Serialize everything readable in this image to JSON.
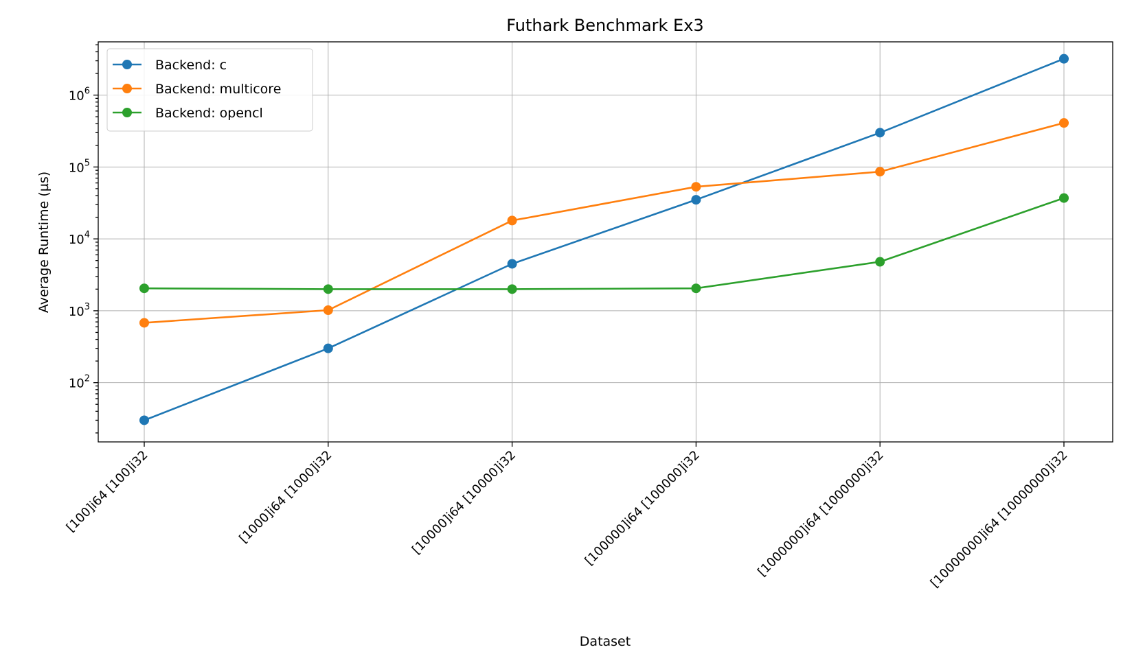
{
  "chart_data": {
    "type": "line",
    "title": "Futhark Benchmark Ex3",
    "xlabel": "Dataset",
    "ylabel": "Average Runtime (µs)",
    "yscale": "log",
    "ylim": [
      15,
      5500000
    ],
    "grid": true,
    "legend_position": "top-left",
    "categories": [
      "[100]i64 [100]i32",
      "[1000]i64 [1000]i32",
      "[10000]i64 [10000]i32",
      "[100000]i64 [100000]i32",
      "[1000000]i64 [1000000]i32",
      "[10000000]i64 [10000000]i32"
    ],
    "y_ticks": [
      {
        "value": 100,
        "base": "10",
        "exp": "2"
      },
      {
        "value": 1000,
        "base": "10",
        "exp": "3"
      },
      {
        "value": 10000,
        "base": "10",
        "exp": "4"
      },
      {
        "value": 100000,
        "base": "10",
        "exp": "5"
      },
      {
        "value": 1000000,
        "base": "10",
        "exp": "6"
      }
    ],
    "series": [
      {
        "name": "Backend: c",
        "color": "#1f77b4",
        "values": [
          30,
          300,
          4500,
          35000,
          300000,
          3200000
        ]
      },
      {
        "name": "Backend: multicore",
        "color": "#ff7f0e",
        "values": [
          680,
          1020,
          18000,
          53000,
          86000,
          410000
        ]
      },
      {
        "name": "Backend: opencl",
        "color": "#2ca02c",
        "values": [
          2050,
          2000,
          2000,
          2050,
          4800,
          37000
        ]
      }
    ]
  }
}
